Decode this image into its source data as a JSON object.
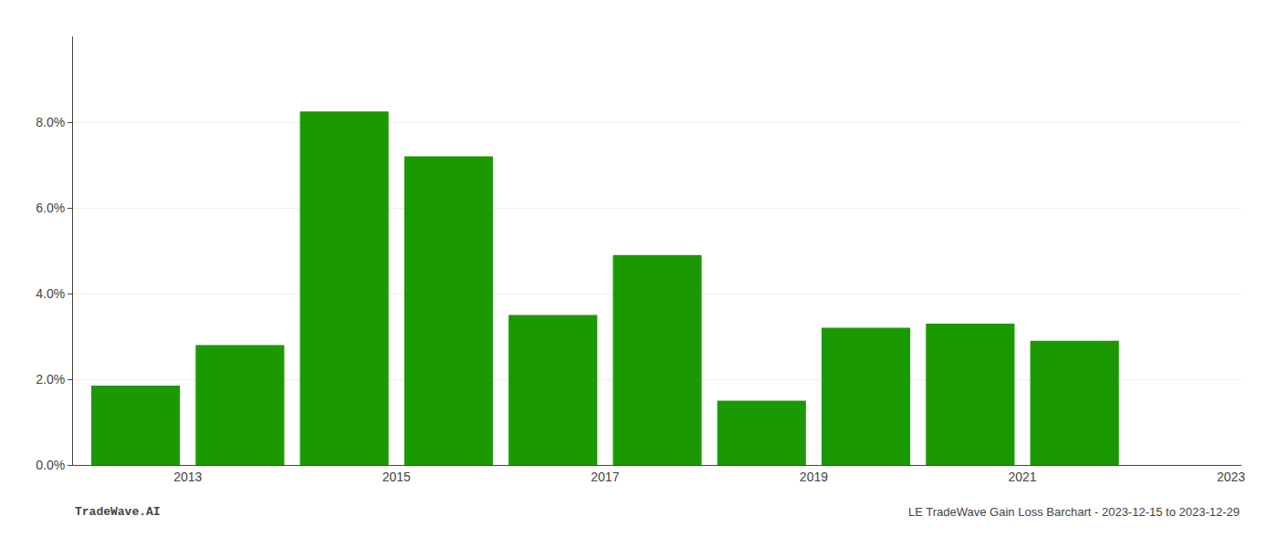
{
  "chart_data": {
    "type": "bar",
    "x": [
      2013,
      2014,
      2015,
      2016,
      2017,
      2018,
      2019,
      2020,
      2021,
      2022
    ],
    "values": [
      0.0185,
      0.028,
      0.0825,
      0.072,
      0.035,
      0.049,
      0.015,
      0.032,
      0.033,
      0.029
    ],
    "color": "#1a9a00",
    "xlim": [
      2012.4,
      2023.6
    ],
    "xticks": [
      {
        "value": 2013.5,
        "label": "2013"
      },
      {
        "value": 2015.5,
        "label": "2015"
      },
      {
        "value": 2017.5,
        "label": "2017"
      },
      {
        "value": 2019.5,
        "label": "2019"
      },
      {
        "value": 2021.5,
        "label": "2021"
      },
      {
        "value": 2023.5,
        "label": "2023"
      }
    ],
    "ylim": [
      0,
      0.1
    ],
    "yticks": [
      {
        "value": 0.0,
        "label": "0.0%"
      },
      {
        "value": 0.02,
        "label": "2.0%"
      },
      {
        "value": 0.04,
        "label": "4.0%"
      },
      {
        "value": 0.06,
        "label": "6.0%"
      },
      {
        "value": 0.08,
        "label": "8.0%"
      }
    ],
    "grid": true,
    "annotations": [
      "TradeWave.AI",
      "LE TradeWave Gain Loss Barchart - 2023-12-15 to 2023-12-29"
    ]
  }
}
